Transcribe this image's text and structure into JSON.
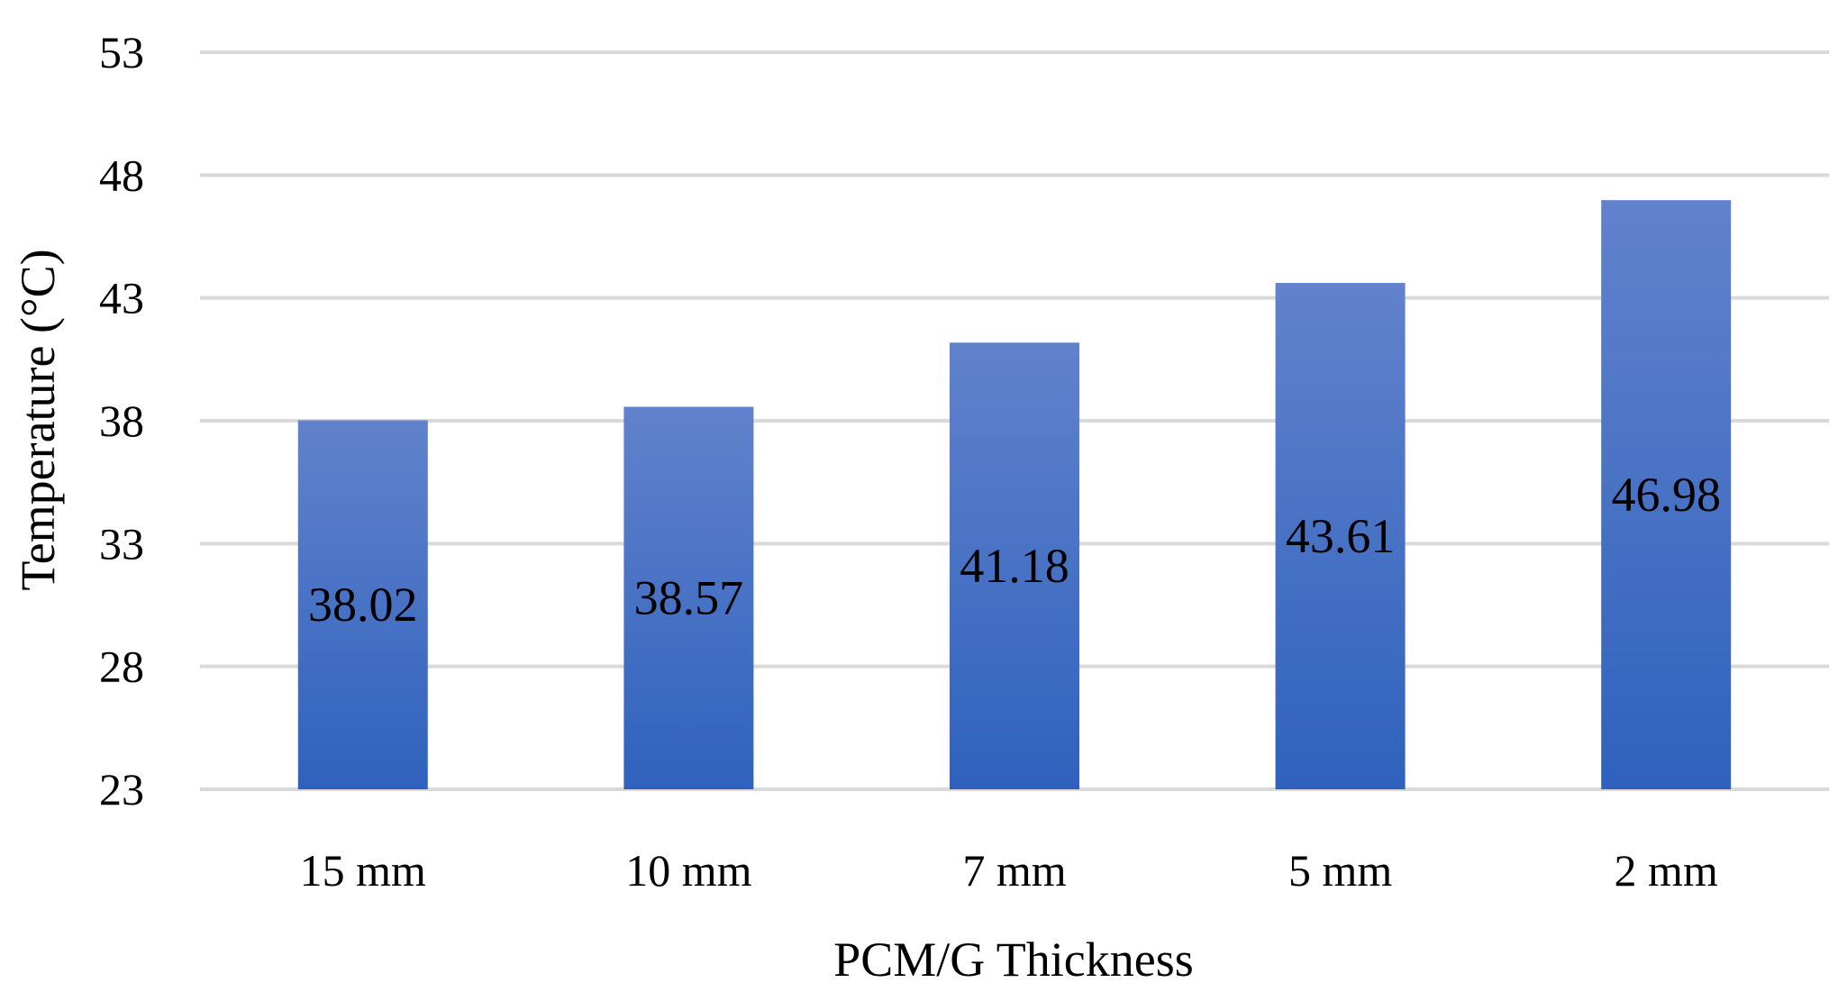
{
  "chart_data": {
    "type": "bar",
    "title": "",
    "xlabel": "PCM/G Thickness",
    "ylabel": "Temperature (°C)",
    "categories": [
      "15 mm",
      "10 mm",
      "7 mm",
      "5 mm",
      "2 mm"
    ],
    "values": [
      38.02,
      38.57,
      41.18,
      43.61,
      46.98
    ],
    "data_labels": [
      "38.02",
      "38.57",
      "41.18",
      "43.61",
      "46.98"
    ],
    "ylim": [
      23,
      53
    ],
    "yticks": [
      23,
      28,
      33,
      38,
      43,
      48,
      53
    ],
    "grid": true,
    "legend": "none",
    "colors": {
      "bar_top": "#6182cc",
      "bar_bottom": "#2f62bd",
      "grid": "#d9d9d9",
      "text": "#000000"
    }
  }
}
